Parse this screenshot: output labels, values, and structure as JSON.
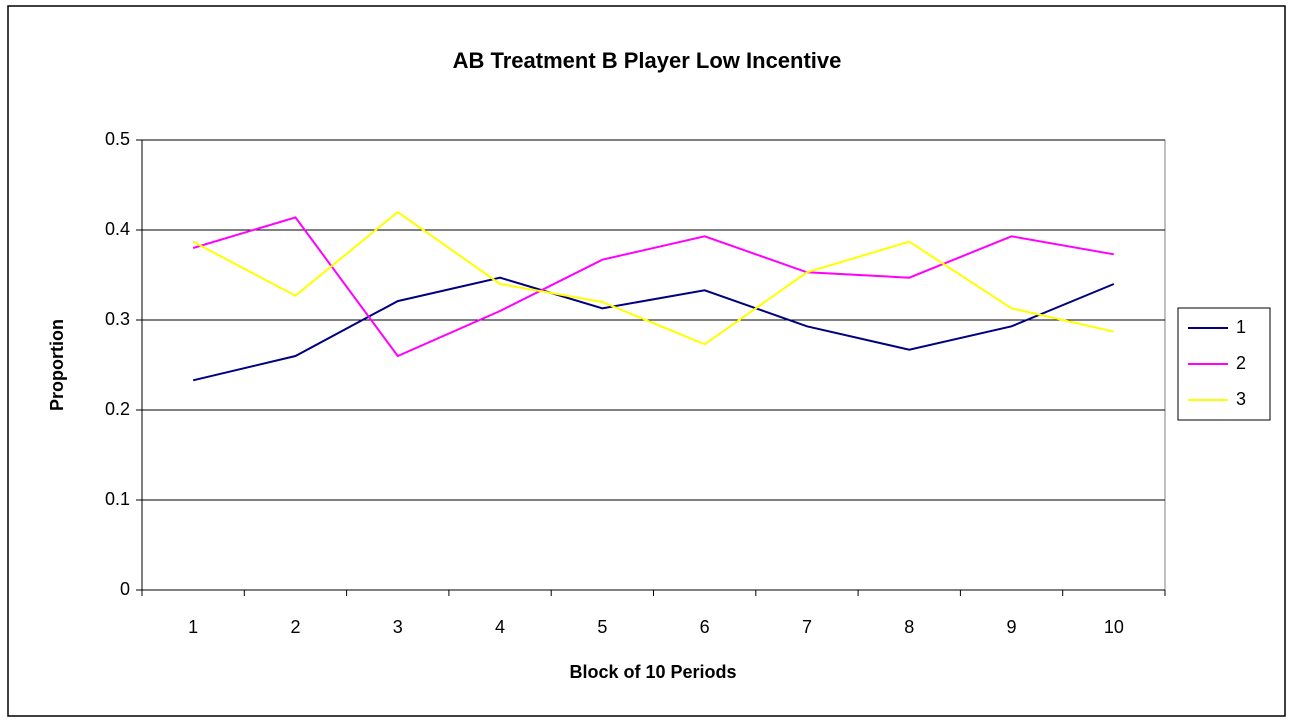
{
  "chart_data": {
    "type": "line",
    "title": "AB Treatment B Player Low Incentive",
    "x_label": "Block of 10 Periods",
    "y_label": "Proportion",
    "categories": [
      "1",
      "2",
      "3",
      "4",
      "5",
      "6",
      "7",
      "8",
      "9",
      "10"
    ],
    "series": [
      {
        "name": "1",
        "color": "#000080",
        "values": [
          0.233,
          0.26,
          0.321,
          0.347,
          0.313,
          0.333,
          0.293,
          0.267,
          0.293,
          0.34
        ]
      },
      {
        "name": "2",
        "color": "#ff00ff",
        "values": [
          0.38,
          0.414,
          0.26,
          0.31,
          0.367,
          0.393,
          0.353,
          0.347,
          0.393,
          0.373
        ]
      },
      {
        "name": "3",
        "color": "#ffff00",
        "values": [
          0.387,
          0.327,
          0.42,
          0.34,
          0.32,
          0.273,
          0.353,
          0.387,
          0.313,
          0.287
        ]
      }
    ],
    "ylim": [
      0,
      0.5
    ],
    "yticks": [
      0,
      0.1,
      0.2,
      0.3,
      0.4,
      0.5
    ],
    "grid": true,
    "legend": "right"
  }
}
